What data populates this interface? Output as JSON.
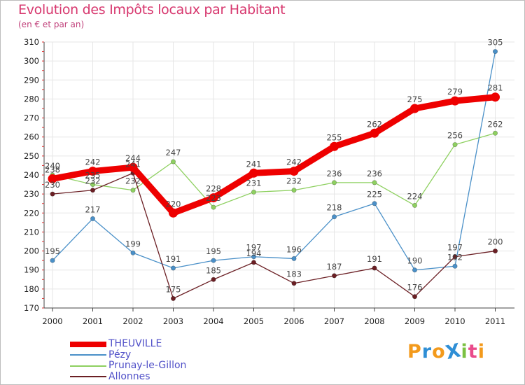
{
  "header": {
    "title": "Evolution des Impôts locaux par Habitant",
    "subtitle": "(en € et par an)"
  },
  "logo": {
    "text": "ProXiti",
    "letters": [
      "P",
      "r",
      "o",
      "X",
      "i",
      "t",
      "i"
    ],
    "colors": [
      "#f39a1c",
      "#2f8fd6",
      "#f39a1c",
      "#2f8fd6",
      "#7bc142",
      "#e94b8b",
      "#f39a1c"
    ]
  },
  "chart_data": {
    "type": "line",
    "title": "Evolution des Impôts locaux par Habitant",
    "subtitle": "(en € et par an)",
    "xlabel": "",
    "ylabel": "",
    "categories": [
      "2000",
      "2001",
      "2002",
      "2003",
      "2004",
      "2005",
      "2006",
      "2007",
      "2008",
      "2009",
      "2010",
      "2011"
    ],
    "ylim": [
      170,
      310
    ],
    "yticks": [
      170,
      180,
      190,
      200,
      210,
      220,
      230,
      240,
      250,
      260,
      270,
      280,
      290,
      300,
      310
    ],
    "grid": true,
    "legend_position": "bottom-left",
    "series": [
      {
        "name": "THEUVILLE",
        "color": "#ee0000",
        "values": [
          238,
          242,
          244,
          220,
          228,
          241,
          242,
          255,
          262,
          275,
          279,
          281
        ]
      },
      {
        "name": "Pézy",
        "color": "#4a90c8",
        "values": [
          195,
          217,
          199,
          191,
          195,
          197,
          196,
          218,
          225,
          190,
          192,
          305
        ]
      },
      {
        "name": "Prunay-le-Gillon",
        "color": "#8ed060",
        "values": [
          240,
          235,
          232,
          247,
          223,
          231,
          232,
          236,
          236,
          224,
          256,
          262
        ]
      },
      {
        "name": "Allonnes",
        "color": "#6b1f24",
        "values": [
          230,
          232,
          241,
          175,
          185,
          194,
          183,
          187,
          191,
          176,
          197,
          200
        ]
      }
    ]
  }
}
